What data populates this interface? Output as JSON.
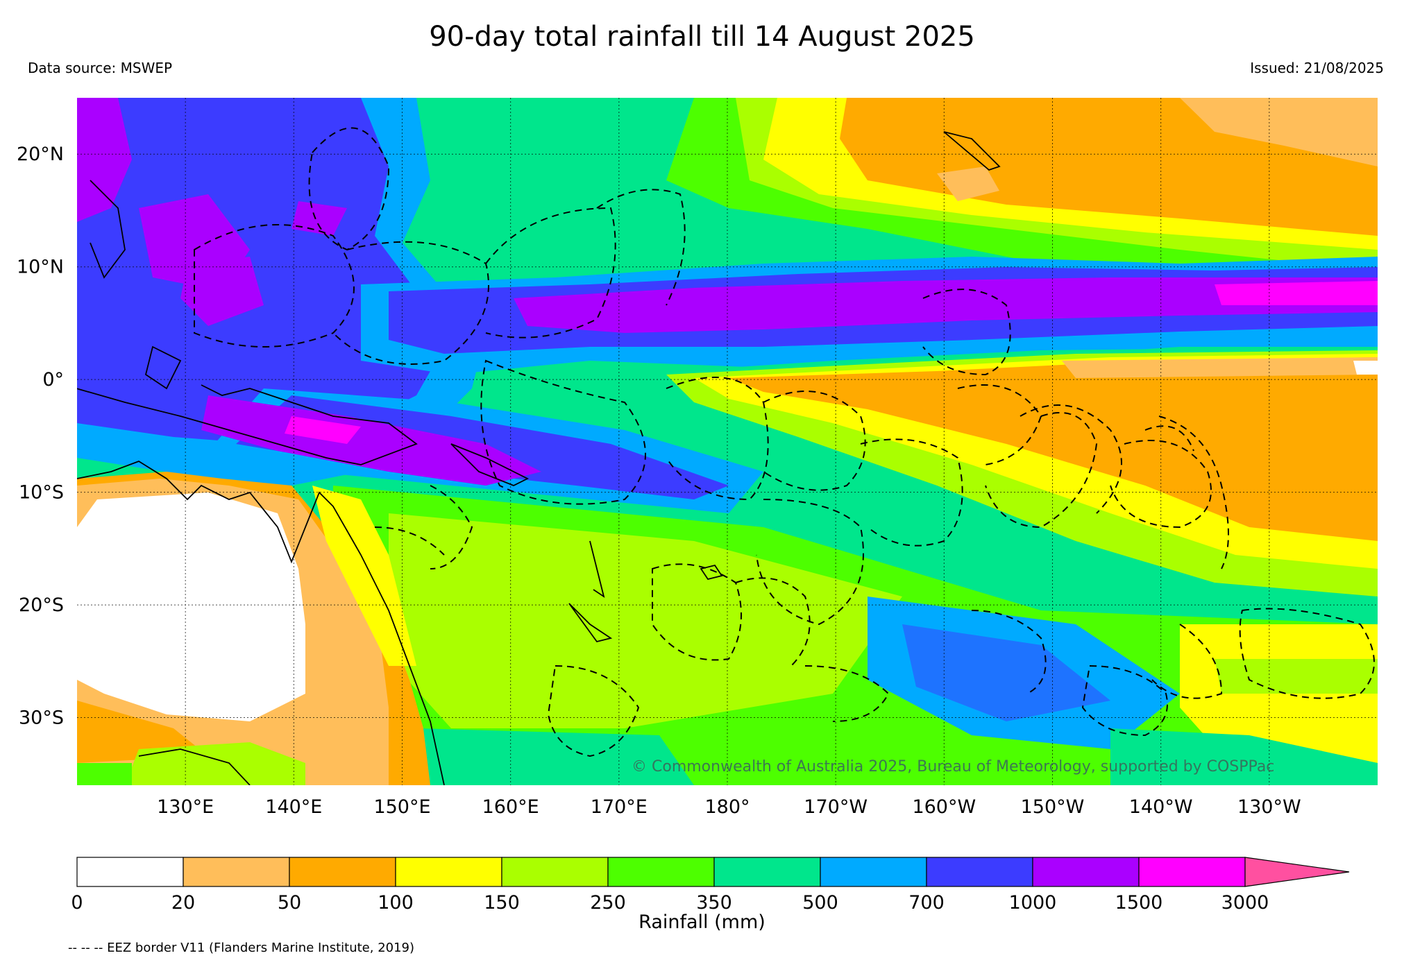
{
  "title": "90-day total rainfall till 14 August 2025",
  "data_source": "Data source: MSWEP",
  "issued": "Issued: 21/08/2025",
  "copyright": "© Commonwealth of Australia 2025, Bureau of Meteorology, supported by COSPPac",
  "footnote": "-- -- -- EEZ border V11 (Flanders Marine Institute, 2019)",
  "map": {
    "lon_range": [
      120,
      240
    ],
    "lat_range": [
      -36,
      25
    ],
    "lon_ticks": [
      {
        "lon": 130,
        "label": "130°E"
      },
      {
        "lon": 140,
        "label": "140°E"
      },
      {
        "lon": 150,
        "label": "150°E"
      },
      {
        "lon": 160,
        "label": "160°E"
      },
      {
        "lon": 170,
        "label": "170°E"
      },
      {
        "lon": 180,
        "label": "180°"
      },
      {
        "lon": 190,
        "label": "170°W"
      },
      {
        "lon": 200,
        "label": "160°W"
      },
      {
        "lon": 210,
        "label": "150°W"
      },
      {
        "lon": 220,
        "label": "140°W"
      },
      {
        "lon": 230,
        "label": "130°W"
      }
    ],
    "lat_ticks": [
      {
        "lat": 20,
        "label": "20°N"
      },
      {
        "lat": 10,
        "label": "10°N"
      },
      {
        "lat": 0,
        "label": "0°"
      },
      {
        "lat": -10,
        "label": "10°S"
      },
      {
        "lat": -20,
        "label": "20°S"
      },
      {
        "lat": -30,
        "label": "30°S"
      }
    ]
  },
  "colorbar": {
    "label": "Rainfall (mm)",
    "boundaries": [
      "0",
      "20",
      "50",
      "100",
      "150",
      "250",
      "350",
      "500",
      "700",
      "1000",
      "1500",
      "3000"
    ],
    "colors": [
      "#ffffff",
      "#ffbe5a",
      "#ffaa00",
      "#ffff00",
      "#aaff00",
      "#4dff00",
      "#00e68c",
      "#00aaff",
      "#3c3cff",
      "#aa00ff",
      "#ff00ff"
    ],
    "extend_color": "#ff50a0"
  }
}
